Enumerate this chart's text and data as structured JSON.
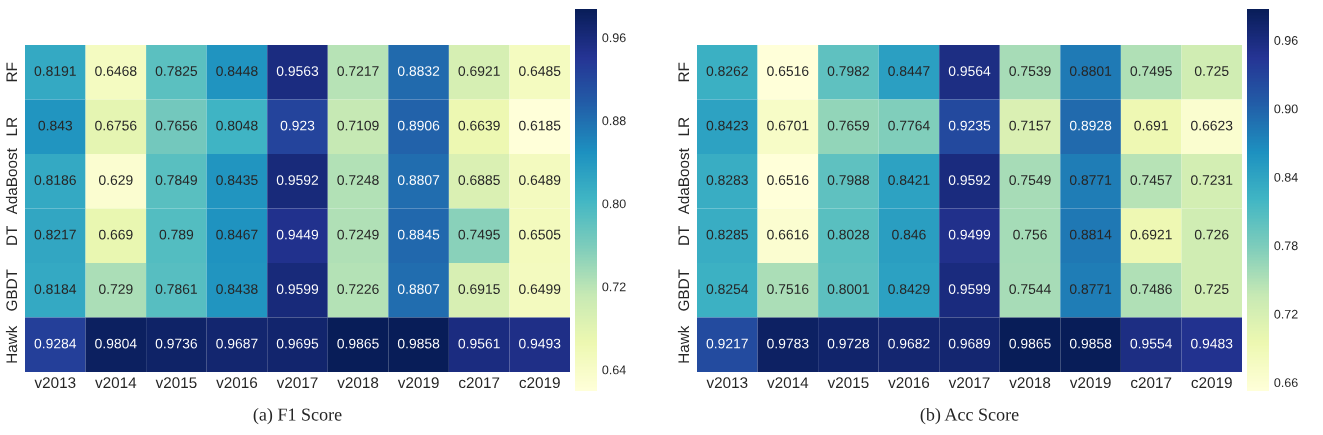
{
  "chart_data": [
    {
      "type": "heatmap",
      "title": "(a) F1 Score",
      "categories": [
        "v2013",
        "v2014",
        "v2015",
        "v2016",
        "v2017",
        "v2018",
        "v2019",
        "c2017",
        "c2019"
      ],
      "y_categories": [
        "RF",
        "LR",
        "AdaBoost",
        "DT",
        "GBDT",
        "Hawk"
      ],
      "cells": [
        [
          0.8191,
          0.6468,
          0.7825,
          0.8448,
          0.9563,
          0.7217,
          0.8832,
          0.6921,
          0.6485
        ],
        [
          0.843,
          0.6756,
          0.7656,
          0.8048,
          0.923,
          0.7109,
          0.8906,
          0.6639,
          0.6185
        ],
        [
          0.8186,
          0.629,
          0.7849,
          0.8435,
          0.9592,
          0.7248,
          0.8807,
          0.6885,
          0.6489
        ],
        [
          0.8217,
          0.669,
          0.789,
          0.8467,
          0.9449,
          0.7249,
          0.8845,
          0.7495,
          0.6505
        ],
        [
          0.8184,
          0.729,
          0.7861,
          0.8438,
          0.9599,
          0.7226,
          0.8807,
          0.6915,
          0.6499
        ],
        [
          0.9284,
          0.9804,
          0.9736,
          0.9687,
          0.9695,
          0.9865,
          0.9858,
          0.9561,
          0.9493
        ]
      ],
      "data_labels": true,
      "clim": [
        0.6185,
        0.9865
      ],
      "cticks": [
        0.64,
        0.72,
        {
          "value": 0.8,
          "label": "0.80"
        },
        0.88,
        0.96
      ]
    },
    {
      "type": "heatmap",
      "title": "(b) Acc Score",
      "categories": [
        "v2013",
        "v2014",
        "v2015",
        "v2016",
        "v2017",
        "v2018",
        "v2019",
        "c2017",
        "c2019"
      ],
      "y_categories": [
        "RF",
        "LR",
        "AdaBoost",
        "DT",
        "GBDT",
        "Hawk"
      ],
      "cells": [
        [
          0.8262,
          0.6516,
          0.7982,
          0.8447,
          0.9564,
          0.7539,
          0.8801,
          0.7495,
          0.725
        ],
        [
          0.8423,
          0.6701,
          0.7659,
          0.7764,
          0.9235,
          0.7157,
          0.8928,
          0.691,
          0.6623
        ],
        [
          0.8283,
          0.6516,
          0.7988,
          0.8421,
          0.9592,
          0.7549,
          0.8771,
          0.7457,
          0.7231
        ],
        [
          0.8285,
          0.6616,
          0.8028,
          0.846,
          0.9499,
          0.756,
          0.8814,
          0.6921,
          0.726
        ],
        [
          0.8254,
          0.7516,
          0.8001,
          0.8429,
          0.9599,
          0.7544,
          0.8771,
          0.7486,
          0.725
        ],
        [
          0.9217,
          0.9783,
          0.9728,
          0.9682,
          0.9689,
          0.9865,
          0.9858,
          0.9554,
          0.9483
        ]
      ],
      "data_labels": true,
      "clim": [
        0.6516,
        0.9865
      ],
      "cticks": [
        0.66,
        0.72,
        0.78,
        0.84,
        {
          "value": 0.9,
          "label": "0.90"
        },
        0.96
      ]
    }
  ]
}
